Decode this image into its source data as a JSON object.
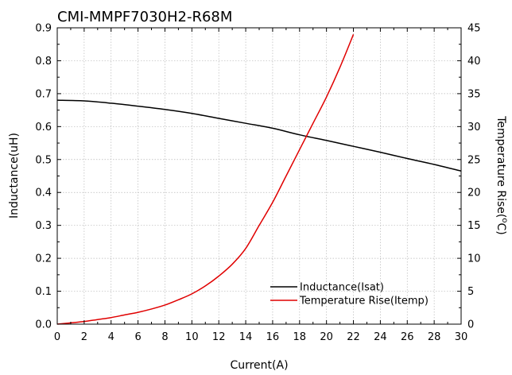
{
  "chart_data": {
    "type": "line",
    "title": "CMI-MMPF7030H2-R68M",
    "xlabel": "Current(A)",
    "ylabel": "Inductance(uH)",
    "y2label": "Temperature Rise(",
    "y2label_unit_sup": "o",
    "y2label_unit_tail": "C)",
    "xlim": [
      0,
      30
    ],
    "ylim": [
      0,
      0.9
    ],
    "y2lim": [
      0,
      45
    ],
    "xticks": [
      "0",
      "2",
      "4",
      "6",
      "8",
      "10",
      "12",
      "14",
      "16",
      "18",
      "20",
      "22",
      "24",
      "26",
      "28",
      "30"
    ],
    "yticks": [
      "0.0",
      "0.1",
      "0.2",
      "0.3",
      "0.4",
      "0.5",
      "0.6",
      "0.7",
      "0.8",
      "0.9"
    ],
    "y2ticks": [
      "0",
      "5",
      "10",
      "15",
      "20",
      "25",
      "30",
      "35",
      "40",
      "45"
    ],
    "grid": true,
    "legend_position": "bottom-right",
    "series": [
      {
        "name": "Inductance(Isat)",
        "axis": "left",
        "color": "#000000",
        "x": [
          0,
          2,
          4,
          6,
          8,
          10,
          12,
          14,
          16,
          18,
          20,
          22,
          24,
          26,
          28,
          30
        ],
        "y": [
          0.68,
          0.678,
          0.671,
          0.662,
          0.652,
          0.64,
          0.625,
          0.61,
          0.595,
          0.575,
          0.558,
          0.54,
          0.522,
          0.503,
          0.485,
          0.465
        ]
      },
      {
        "name": "Temperature Rise(Itemp)",
        "axis": "right",
        "color": "#e00000",
        "x": [
          0,
          1,
          2,
          3,
          4,
          5,
          6,
          7,
          8,
          9,
          10,
          11,
          12,
          13,
          14,
          15,
          16,
          17,
          18,
          19,
          20,
          21,
          22
        ],
        "y": [
          0,
          0.2,
          0.4,
          0.7,
          1.0,
          1.4,
          1.8,
          2.3,
          2.9,
          3.7,
          4.6,
          5.8,
          7.3,
          9.1,
          11.5,
          15.0,
          18.5,
          22.5,
          26.5,
          30.5,
          34.5,
          39.0,
          44.0
        ]
      }
    ]
  }
}
